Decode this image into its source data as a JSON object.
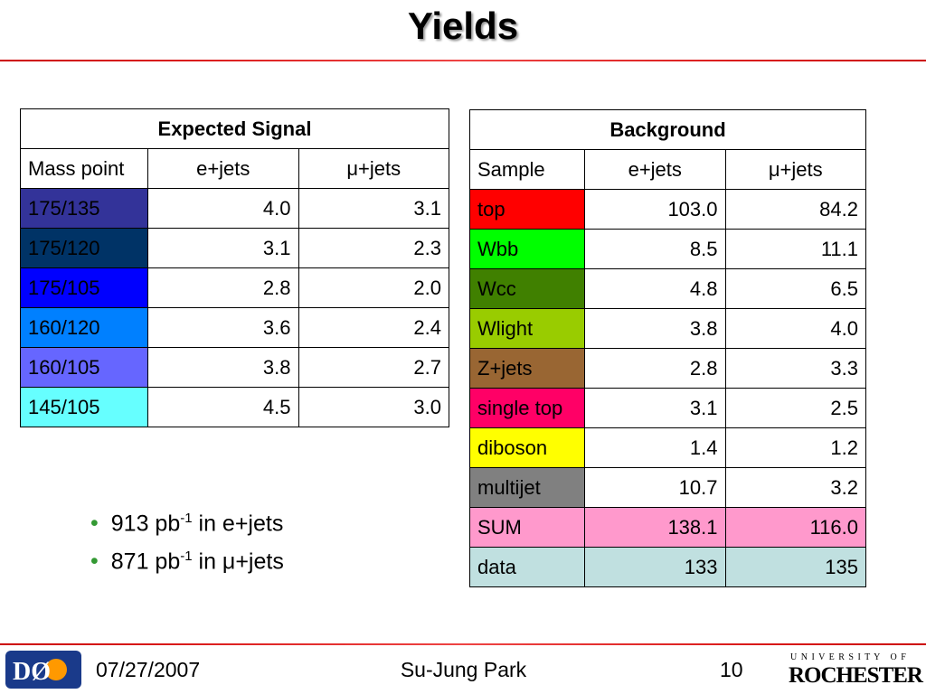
{
  "header": {
    "title": "Yields"
  },
  "signal_table": {
    "title": "Expected Signal",
    "columns": [
      "Mass point",
      "e+jets",
      "μ+jets"
    ],
    "rows": [
      {
        "color": "#333399",
        "cells": [
          "175/135",
          "4.0",
          "3.1"
        ]
      },
      {
        "color": "#003366",
        "cells": [
          "175/120",
          "3.1",
          "2.3"
        ]
      },
      {
        "color": "#0000ff",
        "cells": [
          "175/105",
          "2.8",
          "2.0"
        ]
      },
      {
        "color": "#0080ff",
        "cells": [
          "160/120",
          "3.6",
          "2.4"
        ]
      },
      {
        "color": "#6666ff",
        "cells": [
          "160/105",
          "3.8",
          "2.7"
        ]
      },
      {
        "color": "#66ffff",
        "cells": [
          "145/105",
          "4.5",
          "3.0"
        ]
      }
    ]
  },
  "background_table": {
    "title": "Background",
    "columns": [
      "Sample",
      "e+jets",
      "μ+jets"
    ],
    "rows": [
      {
        "color": "#ff0000",
        "cells": [
          "top",
          "103.0",
          "84.2"
        ]
      },
      {
        "color": "#00ff00",
        "cells": [
          "Wbb",
          "8.5",
          "11.1"
        ]
      },
      {
        "color": "#408000",
        "cells": [
          "Wcc",
          "4.8",
          "6.5"
        ]
      },
      {
        "color": "#99cc00",
        "cells": [
          "Wlight",
          "3.8",
          "4.0"
        ]
      },
      {
        "color": "#996633",
        "cells": [
          "Z+jets",
          "2.8",
          "3.3"
        ]
      },
      {
        "color": "#ff0066",
        "cells": [
          "single top",
          "3.1",
          "2.5"
        ]
      },
      {
        "color": "#ffff00",
        "cells": [
          "diboson",
          "1.4",
          "1.2"
        ]
      },
      {
        "color": "#808080",
        "cells": [
          "multijet",
          "10.7",
          "3.2"
        ]
      },
      {
        "color": "#ff99cc",
        "cells": [
          "SUM",
          "138.1",
          "116.0"
        ]
      },
      {
        "color": "#c0e0e0",
        "cells": [
          "data",
          "133",
          "135"
        ]
      }
    ]
  },
  "bullets": [
    {
      "pre": "913 pb",
      "sup": "-1",
      "post": " in e+jets"
    },
    {
      "pre": "871 pb",
      "sup": "-1",
      "post": " in μ+jets"
    }
  ],
  "footer": {
    "date": "07/27/2007",
    "author": "Su-Jung Park",
    "page": "10",
    "logo_left": "DØ",
    "logo_right_top": "U N I V E R S I T Y   O F",
    "logo_right": "ROCHESTER"
  }
}
